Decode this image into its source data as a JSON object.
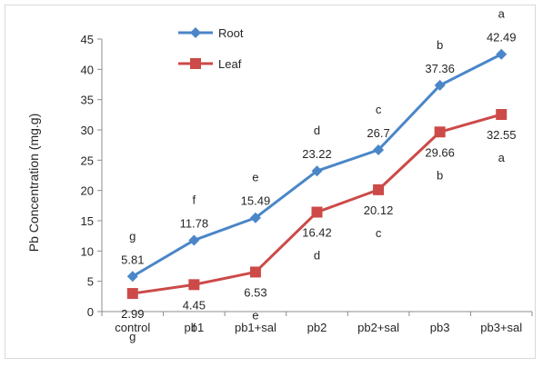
{
  "chart_data": {
    "type": "line",
    "title": "",
    "xlabel": "",
    "ylabel": "Pb Concentration (mg.g)",
    "ylim": [
      0,
      45
    ],
    "yticks": [
      "0",
      "5",
      "10",
      "15",
      "20",
      "25",
      "30",
      "35",
      "40",
      "45"
    ],
    "categories": [
      "control",
      "pb1",
      "pb1+sal",
      "pb2",
      "pb2+sal",
      "pb3",
      "pb3+sal"
    ],
    "grid": false,
    "legend_position": "top-left",
    "series": [
      {
        "name": "Root",
        "color": "#4a86c8",
        "marker": "diamond",
        "values": [
          5.81,
          11.78,
          15.49,
          23.22,
          26.7,
          37.36,
          42.49
        ],
        "labels": [
          "5.81",
          "11.78",
          "15.49",
          "23.22",
          "26.7",
          "37.36",
          "42.49"
        ],
        "letters": [
          "g",
          "f",
          "e",
          "d",
          "c",
          "b",
          "a"
        ]
      },
      {
        "name": "Leaf",
        "color": "#cc4a48",
        "marker": "square",
        "values": [
          2.99,
          4.45,
          6.53,
          16.42,
          20.12,
          29.66,
          32.55
        ],
        "labels": [
          "2.99",
          "4.45",
          "6.53",
          "16.42",
          "20.12",
          "29.66",
          "32.55"
        ],
        "letters": [
          "g",
          "f",
          "e",
          "d",
          "c",
          "b",
          "a"
        ]
      }
    ]
  }
}
